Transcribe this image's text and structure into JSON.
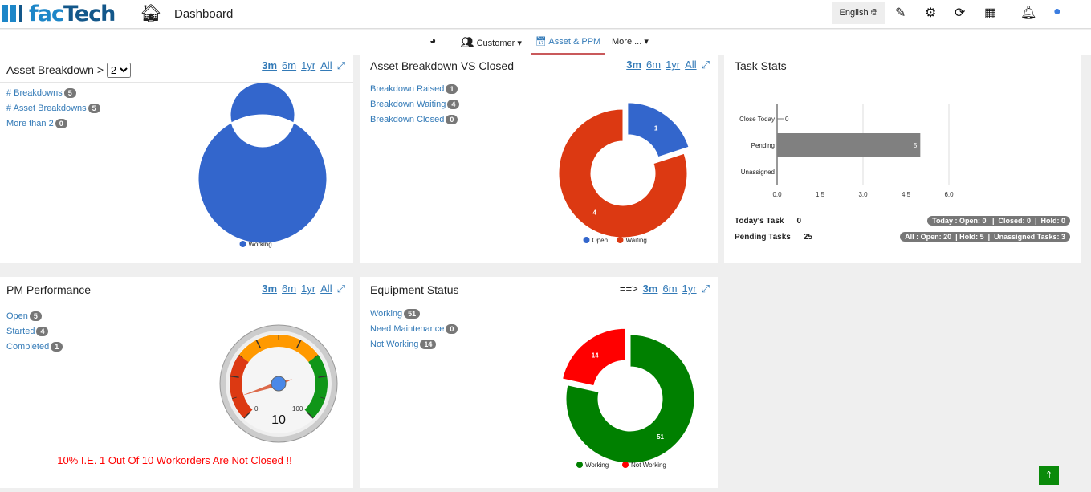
{
  "header": {
    "logo_prefix": "fac",
    "logo_suffix": "Tech",
    "title": "Dashboard",
    "language": "English"
  },
  "nav": {
    "customer": "Customer ▾",
    "asset": "Asset & PPM",
    "more": "More ... ▾"
  },
  "ranges": {
    "m3": "3m",
    "m6": "6m",
    "yr": "1yr",
    "all": "All",
    "arrow": "==>"
  },
  "asset_breakdown": {
    "title": "Asset Breakdown >",
    "select": "2",
    "items": [
      {
        "label": "# Breakdowns",
        "count": "5"
      },
      {
        "label": "# Asset Breakdowns",
        "count": "5"
      },
      {
        "label": "More than 2",
        "count": "0"
      }
    ],
    "chart_data": {
      "type": "pie",
      "labels": [
        "Working"
      ],
      "values": [
        5
      ],
      "colors": [
        "#3366cc"
      ],
      "legend": "bottom"
    }
  },
  "abvc": {
    "title": "Asset Breakdown VS Closed",
    "items": [
      {
        "label": "Breakdown Raised",
        "count": "1"
      },
      {
        "label": "Breakdown Waiting",
        "count": "4"
      },
      {
        "label": "Breakdown Closed",
        "count": "0"
      }
    ],
    "chart_data": {
      "type": "pie",
      "labels": [
        "Open",
        "Waiting"
      ],
      "values": [
        1,
        4
      ],
      "colors": [
        "#3366cc",
        "#dc3912"
      ],
      "legend": "bottom"
    }
  },
  "task_stats": {
    "title": "Task Stats",
    "chart_data": {
      "type": "bar",
      "orientation": "horizontal",
      "categories": [
        "Close Today",
        "Pending",
        "Unassigned"
      ],
      "values": [
        0,
        5,
        null
      ],
      "xlim": [
        0,
        6
      ],
      "xticks": [
        "0.0",
        "1.5",
        "3.0",
        "4.5",
        "6.0"
      ],
      "color": "#808080"
    },
    "today_label": "Today's Task",
    "today_value": "0",
    "pending_label": "Pending Tasks",
    "pending_value": "25",
    "today_pill": "Today : Open: 0   |  Closed: 0  |  Hold: 0",
    "all_pill": "All : Open: 20  | Hold: 5  |  Unassigned Tasks: 3"
  },
  "pm": {
    "title": "PM Performance",
    "items": [
      {
        "label": "Open",
        "count": "5"
      },
      {
        "label": "Started",
        "count": "4"
      },
      {
        "label": "Completed",
        "count": "1"
      }
    ],
    "gauge": {
      "value": 10,
      "min": "0",
      "max": "100",
      "display": "10"
    },
    "message": "10% I.E. 1 Out Of 10 Workorders Are Not Closed !!"
  },
  "equipment": {
    "title": "Equipment Status",
    "items": [
      {
        "label": "Working",
        "count": "51"
      },
      {
        "label": "Need Maintenance",
        "count": "0"
      },
      {
        "label": "Not Working",
        "count": "14"
      }
    ],
    "chart_data": {
      "type": "pie",
      "labels": [
        "Working",
        "Not Working"
      ],
      "values": [
        51,
        14
      ],
      "colors": [
        "#008000",
        "#ff0000"
      ],
      "legend": "bottom"
    }
  },
  "scroll_top": "⇑"
}
